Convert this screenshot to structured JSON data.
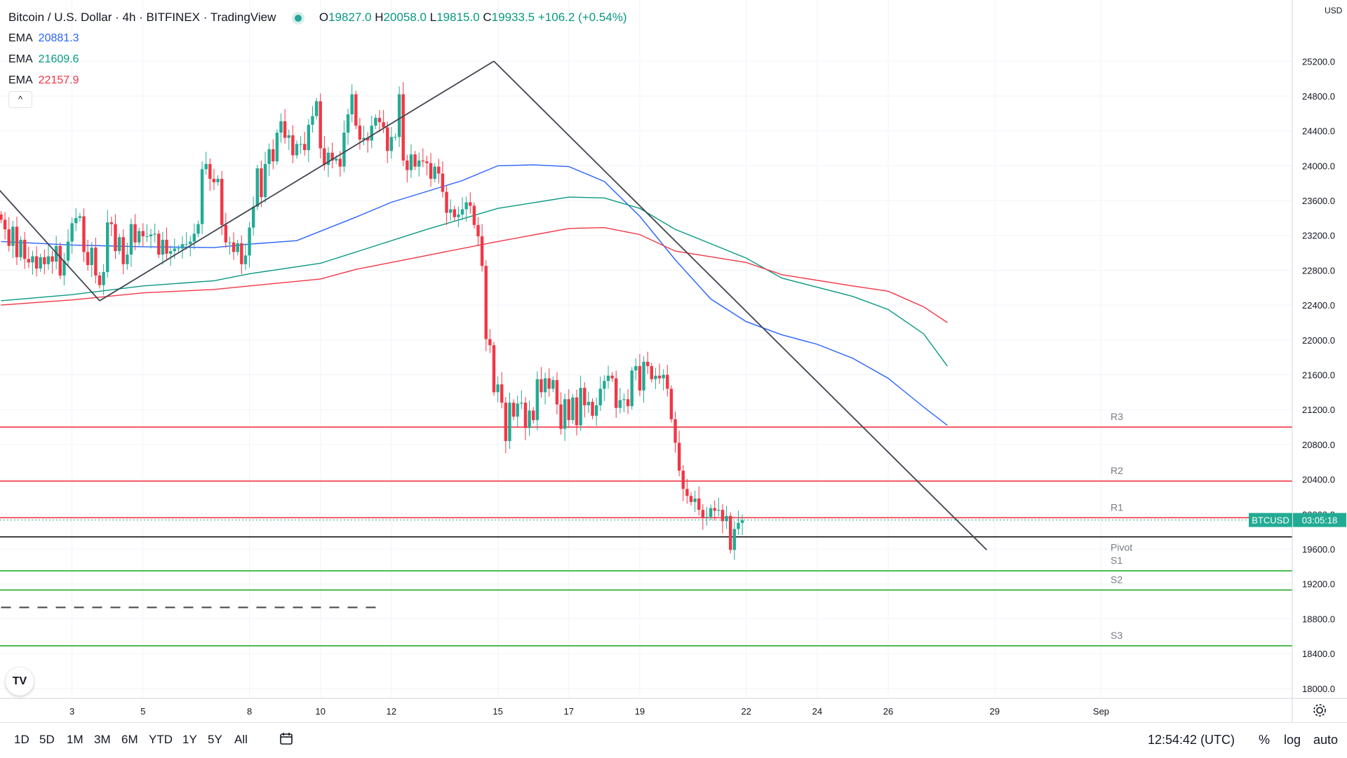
{
  "header": {
    "title": "Bitcoin / U.S. Dollar · 4h · BITFINEX · TradingView",
    "ohlc": [
      {
        "k": "O",
        "v": "19827.0"
      },
      {
        "k": "H",
        "v": "20058.0"
      },
      {
        "k": "L",
        "v": "19815.0"
      },
      {
        "k": "C",
        "v": "19933.5"
      }
    ],
    "change": "+106.2 (+0.54%)"
  },
  "emas": [
    {
      "label": "EMA",
      "value": "20881.3",
      "color": "#2962ff"
    },
    {
      "label": "EMA",
      "value": "21609.6",
      "color": "#089981"
    },
    {
      "label": "EMA",
      "value": "22157.9",
      "color": "#f23645"
    }
  ],
  "collapse_glyph": "^",
  "logo_text": "TV",
  "currency": "USD",
  "price_tag": {
    "symbol": "BTCUSD",
    "countdown": "03:05:18",
    "value": 19933.5
  },
  "bottom": {
    "ranges": [
      "1D",
      "5D",
      "1M",
      "3M",
      "6M",
      "YTD",
      "1Y",
      "5Y",
      "All"
    ],
    "time": "12:54:42 (UTC)",
    "options": [
      "%",
      "log",
      "auto"
    ]
  },
  "chart_data": {
    "type": "candlestick",
    "y_axis": {
      "min": 17950,
      "max": 25500,
      "ticks": [
        "25200.0",
        "24800.0",
        "24400.0",
        "24000.0",
        "23600.0",
        "23200.0",
        "22800.0",
        "22400.0",
        "22000.0",
        "21600.0",
        "21200.0",
        "20800.0",
        "20400.0",
        "20000.0",
        "19600.0",
        "19200.0",
        "18800.0",
        "18400.0",
        "18000.0"
      ]
    },
    "x_axis": {
      "ticks": [
        {
          "label": "3",
          "i": 18
        },
        {
          "label": "5",
          "i": 36
        },
        {
          "label": "8",
          "i": 63
        },
        {
          "label": "10",
          "i": 81
        },
        {
          "label": "12",
          "i": 99
        },
        {
          "label": "15",
          "i": 126
        },
        {
          "label": "17",
          "i": 144
        },
        {
          "label": "19",
          "i": 162
        },
        {
          "label": "22",
          "i": 189
        },
        {
          "label": "24",
          "i": 207
        },
        {
          "label": "26",
          "i": 225
        },
        {
          "label": "29",
          "i": 252
        },
        {
          "label": "Sep",
          "i": 279
        }
      ]
    },
    "first_index": 0,
    "closes": [
      23380,
      23270,
      23080,
      23300,
      22950,
      23150,
      22930,
      22890,
      22960,
      22820,
      22950,
      22870,
      22960,
      22900,
      23080,
      22740,
      22910,
      23130,
      23340,
      23400,
      23420,
      23010,
      22860,
      23060,
      22740,
      22630,
      22780,
      23350,
      23330,
      23020,
      23180,
      22870,
      22980,
      23330,
      23120,
      23250,
      23190,
      23190,
      23210,
      23220,
      22980,
      23150,
      22990,
      23020,
      23050,
      23050,
      23100,
      23100,
      23130,
      23220,
      23330,
      23960,
      24020,
      23850,
      23810,
      23850,
      23320,
      23120,
      23120,
      23010,
      23110,
      22870,
      22970,
      23290,
      23530,
      23970,
      23640,
      24020,
      24190,
      24050,
      24380,
      24510,
      24320,
      24350,
      24120,
      24250,
      24250,
      24180,
      24470,
      24570,
      24740,
      24200,
      24010,
      24150,
      24060,
      24080,
      23990,
      24380,
      24590,
      24820,
      24460,
      24300,
      24320,
      24290,
      24460,
      24550,
      24500,
      24440,
      24170,
      24330,
      24330,
      24820,
      24060,
      23950,
      24130,
      23990,
      24060,
      24050,
      24030,
      23850,
      23990,
      23910,
      23700,
      23460,
      23500,
      23410,
      23440,
      23500,
      23580,
      23540,
      23320,
      23190,
      22850,
      22010,
      21940,
      21400,
      21490,
      21280,
      20840,
      21280,
      21120,
      21270,
      21280,
      20990,
      21190,
      21080,
      21550,
      21400,
      21560,
      21440,
      21540,
      21260,
      20980,
      21320,
      21080,
      21340,
      21020,
      21450,
      21250,
      21290,
      21130,
      21250,
      21440,
      21530,
      21590,
      21560,
      21220,
      21310,
      21320,
      21240,
      21650,
      21700,
      21420,
      21750,
      21700,
      21550,
      21590,
      21560,
      21600,
      21440,
      21090,
      20820,
      20500,
      20290,
      20210,
      20140,
      20180,
      20050,
      19960,
      19970,
      20070,
      20040,
      20050,
      19920,
      19980,
      19590,
      19830,
      19900,
      19930
    ],
    "ema_lines": [
      {
        "name": "EMA",
        "value": 20881.3,
        "color": "#2962ff",
        "points": [
          [
            0,
            23130
          ],
          [
            18,
            23090
          ],
          [
            36,
            23070
          ],
          [
            54,
            23060
          ],
          [
            63,
            23100
          ],
          [
            75,
            23140
          ],
          [
            90,
            23410
          ],
          [
            99,
            23580
          ],
          [
            117,
            23830
          ],
          [
            126,
            24000
          ],
          [
            135,
            24010
          ],
          [
            144,
            23990
          ],
          [
            153,
            23820
          ],
          [
            162,
            23420
          ],
          [
            171,
            22920
          ],
          [
            180,
            22470
          ],
          [
            189,
            22210
          ],
          [
            198,
            22060
          ],
          [
            207,
            21950
          ],
          [
            216,
            21790
          ],
          [
            225,
            21560
          ],
          [
            234,
            21230
          ],
          [
            240,
            21020
          ]
        ]
      },
      {
        "name": "EMA",
        "value": 21609.6,
        "color": "#089981",
        "points": [
          [
            0,
            22450
          ],
          [
            18,
            22520
          ],
          [
            36,
            22620
          ],
          [
            54,
            22680
          ],
          [
            63,
            22760
          ],
          [
            81,
            22880
          ],
          [
            90,
            23010
          ],
          [
            108,
            23270
          ],
          [
            126,
            23510
          ],
          [
            144,
            23640
          ],
          [
            153,
            23630
          ],
          [
            162,
            23510
          ],
          [
            171,
            23270
          ],
          [
            189,
            22940
          ],
          [
            198,
            22710
          ],
          [
            216,
            22500
          ],
          [
            225,
            22350
          ],
          [
            234,
            22070
          ],
          [
            240,
            21700
          ]
        ]
      },
      {
        "name": "EMA",
        "value": 22157.9,
        "color": "#f23645",
        "points": [
          [
            0,
            22400
          ],
          [
            18,
            22460
          ],
          [
            36,
            22540
          ],
          [
            54,
            22580
          ],
          [
            63,
            22620
          ],
          [
            81,
            22700
          ],
          [
            90,
            22810
          ],
          [
            108,
            22970
          ],
          [
            126,
            23130
          ],
          [
            144,
            23280
          ],
          [
            153,
            23290
          ],
          [
            162,
            23210
          ],
          [
            171,
            23020
          ],
          [
            189,
            22890
          ],
          [
            198,
            22750
          ],
          [
            216,
            22620
          ],
          [
            225,
            22560
          ],
          [
            234,
            22380
          ],
          [
            240,
            22200
          ]
        ]
      }
    ],
    "pivot_lines": [
      {
        "label": "R3",
        "value": 21000,
        "color": "#f23645"
      },
      {
        "label": "R2",
        "value": 20380,
        "color": "#f23645"
      },
      {
        "label": "R1",
        "value": 19960,
        "color": "#f23645"
      },
      {
        "label": "Pivot",
        "value": 19740,
        "color": "#000000"
      },
      {
        "label": "S1",
        "value": 19350,
        "color": "#22ab2a"
      },
      {
        "label": "S2",
        "value": 19130,
        "color": "#22ab2a"
      },
      {
        "label": "S3",
        "value": 18490,
        "color": "#22ab2a"
      }
    ],
    "dashed_line": {
      "value": 18930,
      "from_i": 0,
      "to_i": 96
    },
    "trendlines": [
      {
        "from": [
          -1,
          23750
        ],
        "to": [
          25,
          22450
        ]
      },
      {
        "from": [
          25,
          22450
        ],
        "to": [
          125,
          25200
        ]
      },
      {
        "from": [
          125,
          25200
        ],
        "to": [
          250,
          19590
        ]
      }
    ]
  }
}
